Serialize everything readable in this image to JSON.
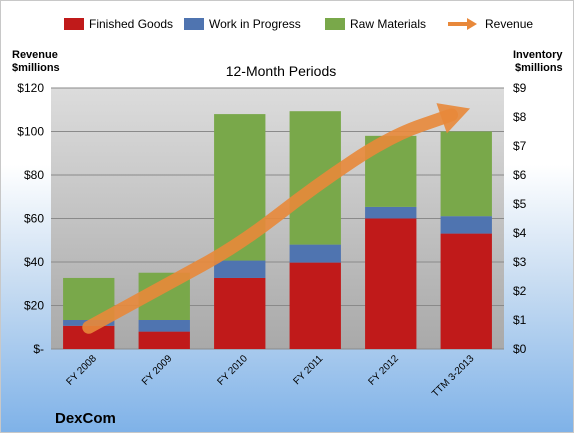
{
  "chart_data": {
    "type": "bar",
    "stacked": true,
    "title": "12-Month Periods",
    "company": "DexCom",
    "categories": [
      "FY 2008",
      "FY 2009",
      "FY 2010",
      "FY 2011",
      "FY 2012",
      "TTM 3-2013"
    ],
    "left_axis": {
      "title_line1": "Revenue",
      "title_line2": "$millions",
      "ylim": [
        0,
        120
      ],
      "ticks": [
        {
          "value": 0,
          "label": "$-"
        },
        {
          "value": 20,
          "label": "$20"
        },
        {
          "value": 40,
          "label": "$40"
        },
        {
          "value": 60,
          "label": "$60"
        },
        {
          "value": 80,
          "label": "$80"
        },
        {
          "value": 100,
          "label": "$100"
        },
        {
          "value": 120,
          "label": "$120"
        }
      ]
    },
    "right_axis": {
      "title_line1": "Inventory",
      "title_line2": "$millions",
      "ylim": [
        0,
        9
      ],
      "ticks": [
        {
          "value": 0,
          "label": "$0"
        },
        {
          "value": 1,
          "label": "$1"
        },
        {
          "value": 2,
          "label": "$2"
        },
        {
          "value": 3,
          "label": "$3"
        },
        {
          "value": 4,
          "label": "$4"
        },
        {
          "value": 5,
          "label": "$5"
        },
        {
          "value": 6,
          "label": "$6"
        },
        {
          "value": 7,
          "label": "$7"
        },
        {
          "value": 8,
          "label": "$8"
        },
        {
          "value": 9,
          "label": "$9"
        }
      ]
    },
    "series": [
      {
        "name": "Finished Goods",
        "axis": "right",
        "color": "#c01a1a",
        "values": [
          0.8,
          0.6,
          2.45,
          2.98,
          4.5,
          3.98
        ]
      },
      {
        "name": "Work in Progress",
        "axis": "right",
        "color": "#4f74b0",
        "values": [
          0.2,
          0.4,
          0.6,
          0.62,
          0.4,
          0.6
        ]
      },
      {
        "name": "Raw Materials",
        "axis": "right",
        "color": "#79a84a",
        "values": [
          1.45,
          1.63,
          5.05,
          4.6,
          2.45,
          2.92
        ]
      },
      {
        "name": "Revenue",
        "axis": "left",
        "color": "#e8883a",
        "type": "line",
        "values": [
          10,
          29,
          48,
          75,
          98,
          110
        ]
      }
    ],
    "legend_position": "top",
    "grid": true
  }
}
